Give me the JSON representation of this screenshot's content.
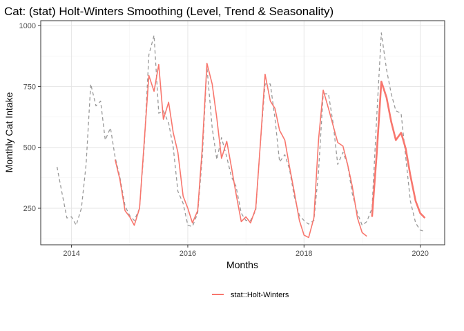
{
  "chart_data": {
    "type": "line",
    "title": "Cat: (stat) Holt-Winters Smoothing (Level, Trend & Seasonality)",
    "xlabel": "Months",
    "ylabel": "Monthly Cat Intake",
    "xlim": [
      2013.47,
      2020.42
    ],
    "ylim": [
      100,
      1020
    ],
    "x_ticks": [
      2014,
      2016,
      2018,
      2020
    ],
    "x_tick_labels": [
      "2014",
      "2016",
      "2018",
      "2020"
    ],
    "y_ticks": [
      250,
      500,
      750,
      1000
    ],
    "y_tick_labels": [
      "250",
      "500",
      "750",
      "1000"
    ],
    "grid": true,
    "legend_position": "bottom",
    "colors": {
      "observed": "#999999",
      "fitted": "#F8766D",
      "forecast": "#F8766D",
      "panel_border": "#333333",
      "grid_major": "#e5e5e5",
      "grid_minor": "#f2f2f2"
    },
    "series": [
      {
        "name": "",
        "key": "observed",
        "style": "dashed",
        "x": [
          2013.75,
          2013.83,
          2013.92,
          2014.0,
          2014.08,
          2014.17,
          2014.25,
          2014.33,
          2014.42,
          2014.5,
          2014.58,
          2014.67,
          2014.75,
          2014.83,
          2014.92,
          2015.0,
          2015.08,
          2015.17,
          2015.25,
          2015.33,
          2015.42,
          2015.5,
          2015.58,
          2015.67,
          2015.75,
          2015.83,
          2015.92,
          2016.0,
          2016.08,
          2016.17,
          2016.25,
          2016.33,
          2016.42,
          2016.5,
          2016.58,
          2016.67,
          2016.75,
          2016.83,
          2016.92,
          2017.0,
          2017.08,
          2017.17,
          2017.25,
          2017.33,
          2017.42,
          2017.5,
          2017.58,
          2017.67,
          2017.75,
          2017.83,
          2017.92,
          2018.0,
          2018.08,
          2018.17,
          2018.25,
          2018.33,
          2018.42,
          2018.5,
          2018.58,
          2018.67,
          2018.75,
          2018.83,
          2018.92,
          2019.0,
          2019.08,
          2019.17,
          2019.25,
          2019.33,
          2019.42,
          2019.5,
          2019.58,
          2019.67,
          2019.75,
          2019.83,
          2019.92,
          2020.0,
          2020.08
        ],
        "values": [
          420,
          320,
          210,
          215,
          180,
          250,
          430,
          760,
          670,
          690,
          530,
          580,
          460,
          380,
          260,
          220,
          200,
          250,
          500,
          880,
          960,
          640,
          650,
          600,
          500,
          320,
          270,
          180,
          175,
          230,
          460,
          830,
          580,
          450,
          540,
          460,
          380,
          340,
          230,
          200,
          200,
          240,
          520,
          760,
          760,
          620,
          440,
          470,
          410,
          300,
          220,
          200,
          185,
          200,
          400,
          720,
          720,
          600,
          430,
          480,
          430,
          310,
          230,
          180,
          195,
          250,
          620,
          970,
          820,
          720,
          650,
          640,
          460,
          280,
          190,
          160,
          155
        ]
      },
      {
        "name": "stat::Holt-Winters",
        "key": "fitted",
        "style": "solid",
        "x": [
          2014.75,
          2014.83,
          2014.92,
          2015.0,
          2015.08,
          2015.17,
          2015.25,
          2015.33,
          2015.42,
          2015.5,
          2015.58,
          2015.67,
          2015.75,
          2015.83,
          2015.92,
          2016.0,
          2016.08,
          2016.17,
          2016.25,
          2016.33,
          2016.42,
          2016.5,
          2016.58,
          2016.67,
          2016.75,
          2016.83,
          2016.92,
          2017.0,
          2017.08,
          2017.17,
          2017.25,
          2017.33,
          2017.42,
          2017.5,
          2017.58,
          2017.67,
          2017.75,
          2017.83,
          2017.92,
          2018.0,
          2018.08,
          2018.17,
          2018.25,
          2018.33,
          2018.42,
          2018.5,
          2018.58,
          2018.67,
          2018.75,
          2018.83,
          2018.92,
          2019.0,
          2019.08
        ],
        "values": [
          450,
          370,
          240,
          215,
          180,
          250,
          520,
          795,
          730,
          840,
          615,
          685,
          560,
          480,
          300,
          250,
          190,
          240,
          500,
          845,
          760,
          620,
          455,
          525,
          420,
          310,
          195,
          215,
          190,
          250,
          520,
          800,
          690,
          660,
          570,
          530,
          420,
          320,
          200,
          140,
          130,
          210,
          530,
          735,
          660,
          590,
          520,
          505,
          430,
          340,
          210,
          150,
          135
        ]
      },
      {
        "name": "",
        "key": "forecast",
        "style": "solid-thick",
        "x": [
          2019.17,
          2019.25,
          2019.33,
          2019.42,
          2019.5,
          2019.58,
          2019.67,
          2019.75,
          2019.83,
          2019.92,
          2020.0,
          2020.08
        ],
        "values": [
          215,
          470,
          770,
          705,
          605,
          530,
          560,
          495,
          385,
          280,
          230,
          210
        ]
      }
    ]
  }
}
